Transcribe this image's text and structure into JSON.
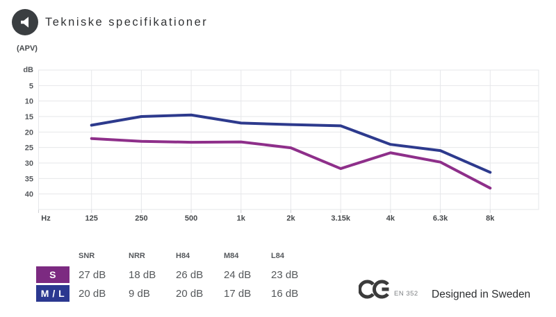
{
  "header": {
    "title": "Tekniske specifikationer",
    "icon": "speaker-icon"
  },
  "chart_data": {
    "type": "line",
    "title": "",
    "unit_label": "(APV)",
    "ylabel": "dB",
    "xlabel": "Hz",
    "y_inverted": true,
    "grid": true,
    "legend_position": "table-below",
    "categories": [
      "125",
      "250",
      "500",
      "1k",
      "2k",
      "3.15k",
      "4k",
      "6.3k",
      "8k"
    ],
    "y_ticks": [
      5,
      10,
      15,
      20,
      25,
      30,
      35,
      40
    ],
    "ylim": [
      0,
      45
    ],
    "series": [
      {
        "name": "M/L",
        "color": "#2d3a8d",
        "values": [
          17.8,
          15,
          14.5,
          17.1,
          17.6,
          18,
          24,
          26,
          33
        ]
      },
      {
        "name": "S",
        "color": "#8e2f8a",
        "values": [
          22.1,
          23,
          23.3,
          23.2,
          25.1,
          31.8,
          26.7,
          29.7,
          38.1
        ]
      }
    ]
  },
  "table": {
    "headers": [
      "SNR",
      "NRR",
      "H84",
      "M84",
      "L84"
    ],
    "rows": [
      {
        "label": "S",
        "badge_color": "#7c2a81",
        "values": [
          "27 dB",
          "18 dB",
          "26 dB",
          "24 dB",
          "23 dB"
        ]
      },
      {
        "label": "M / L",
        "badge_color": "#2b3890",
        "values": [
          "20 dB",
          "9 dB",
          "20 dB",
          "17 dB",
          "16 dB"
        ]
      }
    ]
  },
  "footer": {
    "ce_standard": "EN 352",
    "designed_in": "Designed in Sweden"
  },
  "colors": {
    "grid": "#e6e7ea",
    "icon_circle": "#3a3e41",
    "ce_mark": "#3b3b3b"
  }
}
